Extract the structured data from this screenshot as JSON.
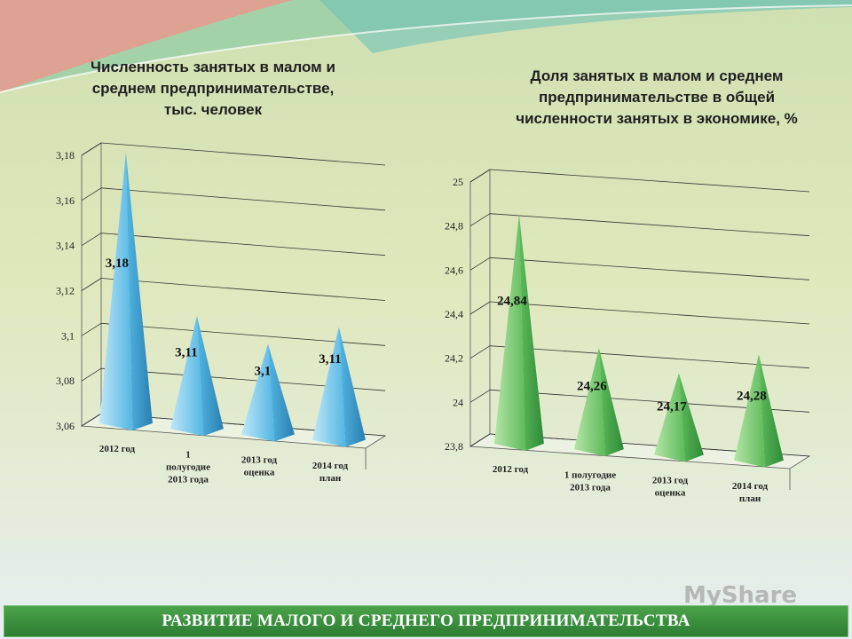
{
  "colors": {
    "left_bar": "#3fa9d6",
    "right_bar": "#4caf50",
    "footer": "#3a8f3a"
  },
  "chart_data": [
    {
      "type": "bar",
      "title": "Численность занятых в малом и\nсреднем предпринимательстве,\nтыс. человек",
      "categories": [
        "2012 год",
        "1\nполугодие\n2013 года",
        "2013 год\nоценка",
        "2014 год\nплан"
      ],
      "values": [
        3.18,
        3.11,
        3.1,
        3.11
      ],
      "data_labels": [
        "3,18",
        "3,11",
        "3,1",
        "3,11"
      ],
      "yticks": [
        "3,06",
        "3,08",
        "3,1",
        "3,12",
        "3,14",
        "3,16",
        "3,18"
      ],
      "ylim": [
        3.06,
        3.18
      ],
      "grid": true,
      "shape": "pyramid"
    },
    {
      "type": "bar",
      "title": "Доля занятых в малом и среднем\nпредпринимательстве в общей\nчисленности занятых в экономике, %",
      "categories": [
        "2012 год",
        "1 полугодие\n2013 года",
        "2013 год\nоценка",
        "2014 год\nплан"
      ],
      "values": [
        24.84,
        24.26,
        24.17,
        24.28
      ],
      "data_labels": [
        "24,84",
        "24,26",
        "24,17",
        "24,28"
      ],
      "yticks": [
        "23,8",
        "24",
        "24,2",
        "24,4",
        "24,6",
        "24,8",
        "25"
      ],
      "ylim": [
        23.8,
        25
      ],
      "grid": true,
      "shape": "pyramid"
    }
  ],
  "footer": {
    "text": "РАЗВИТИЕ МАЛОГО И СРЕДНЕГО ПРЕДПРИНИМАТЕЛЬСТВА"
  },
  "watermark": {
    "text": "MyShare"
  }
}
